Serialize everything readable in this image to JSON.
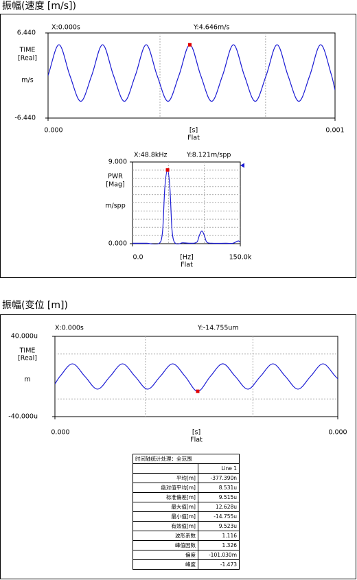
{
  "panel_titles": [
    "振幅(速度 [m/s])",
    "振幅(变位 [m])"
  ],
  "chart_data": [
    {
      "type": "line",
      "color": "#1c1cd4",
      "marker_color": "#e00000",
      "cursor_x": "X:0.000s",
      "cursor_y": "Y:4.646m/s",
      "y_labels": [
        "TIME",
        "[Real]",
        "m/s"
      ],
      "x_label": "[s]",
      "x_sublabel": "Flat",
      "x": [
        0,
        3.8e-05,
        7.6e-05,
        0.000114,
        0.000152,
        0.00019,
        0.000228,
        0.000266,
        0.000304,
        0.000342,
        0.00038,
        0.000418,
        0.000456,
        0.000494,
        0.000532,
        0.00057,
        0.000608,
        0.000646,
        0.000684,
        0.000722,
        0.00076,
        0.000798,
        0.000836,
        0.000874,
        0.000912,
        0.00095,
        0.000988,
        0.001
      ],
      "values": [
        0,
        4.646,
        0,
        -3.9,
        0,
        4.646,
        0,
        -3.9,
        0,
        4.646,
        0,
        -3.9,
        0,
        4.646,
        0,
        -3.9,
        0,
        4.646,
        0,
        -3.9,
        0,
        4.646,
        0,
        -3.9,
        0,
        4.646,
        0,
        -2.2
      ],
      "marker_index": 13,
      "xlim": [
        0,
        0.001
      ],
      "xticks": [
        {
          "value": 0,
          "label": "0.000"
        },
        {
          "value": 0.001,
          "label": "0.001"
        }
      ],
      "ylim": [
        -6.44,
        6.44
      ],
      "yticks": [
        {
          "value": 6.44,
          "label": "6.440"
        },
        {
          "value": -6.44,
          "label": "-6.440"
        }
      ]
    },
    {
      "type": "line",
      "color": "#1c1cd4",
      "marker_color": "#e00000",
      "cursor_x": "X:48.8kHz",
      "cursor_y": "Y:8.121m/spp",
      "y_labels": [
        "PWR",
        "[Mag]",
        "m/spp"
      ],
      "x_label": "[Hz]",
      "x_sublabel": "Flat",
      "x": [
        0,
        20000,
        38000,
        42000,
        45000,
        48800,
        52000,
        55000,
        59000,
        70000,
        80000,
        90000,
        93000,
        96500,
        100000,
        103000,
        110000,
        130000,
        140000,
        147000,
        150000
      ],
      "values": [
        0.05,
        0.05,
        0.1,
        1.5,
        6.2,
        8.121,
        6.2,
        1.5,
        0.1,
        0.1,
        0.05,
        0.2,
        0.9,
        1.4,
        0.9,
        0.2,
        0.05,
        0.05,
        0.05,
        0.3,
        0.2
      ],
      "marker_index": 5,
      "xlim": [
        0,
        150000
      ],
      "xticks": [
        {
          "value": 0,
          "label": "0.0"
        },
        {
          "value": 150000,
          "label": "150.0k"
        }
      ],
      "ylim": [
        0,
        9
      ],
      "yticks": [
        {
          "value": 9,
          "label": "9.000"
        },
        {
          "value": 0,
          "label": "0.000"
        }
      ]
    },
    {
      "type": "line",
      "color": "#1c1cd4",
      "marker_color": "#e00000",
      "cursor_x": "X:0.000s",
      "cursor_y": "Y:-14.755um",
      "y_labels": [
        "TIME",
        "[Real]",
        "m"
      ],
      "x_label": "[s]",
      "x_sublabel": "Flat",
      "x": [
        0,
        7.04e-06,
        2.48e-05,
        4.25e-05,
        6.02e-05,
        7.79e-05,
        9.56e-05,
        0.0001134,
        0.0001311,
        0.0001488,
        0.0001665,
        0.0001842,
        0.0002019,
        0.0002197,
        0.0002374,
        0.0002551,
        0.0002728,
        0.0002905,
        0.0003083,
        0.000326,
        0.0003437,
        0.0003614,
        0.0003791,
        0.0003968,
        0.0004
      ],
      "values": [
        -7.5,
        0,
        12.6,
        0,
        -12.6,
        0,
        12.6,
        0,
        -12.6,
        0,
        12.6,
        0,
        -14.755,
        0,
        12.628,
        0,
        -12.6,
        0,
        12.6,
        0,
        -12.6,
        0,
        12.6,
        0,
        -2.3
      ],
      "marker_index": 12,
      "xlim": [
        0,
        0.0004
      ],
      "xticks": [
        {
          "value": 0,
          "label": "0.000"
        },
        {
          "value": 0.0004,
          "label": "0.000"
        }
      ],
      "ylim": [
        -40,
        40
      ],
      "yticks": [
        {
          "value": 40,
          "label": "40.000u"
        },
        {
          "value": -40,
          "label": "-40.000u"
        }
      ]
    }
  ],
  "stats_table": {
    "title": "时间轴统计处理：全范围",
    "column_header": "Line 1",
    "rows": [
      [
        "平均[m]",
        "-377.390n"
      ],
      [
        "绝对值平均[m]",
        "8.531u"
      ],
      [
        "标准偏差[m]",
        "9.515u"
      ],
      [
        "最大值[m]",
        "12.628u"
      ],
      [
        "最小值[m]",
        "-14.755u"
      ],
      [
        "有效值[m]",
        "9.523u"
      ],
      [
        "波形系数",
        "1.116"
      ],
      [
        "峰值因数",
        "1.326"
      ],
      [
        "偏度",
        "-101.030m"
      ],
      [
        "峰度",
        "-1.473"
      ]
    ]
  }
}
